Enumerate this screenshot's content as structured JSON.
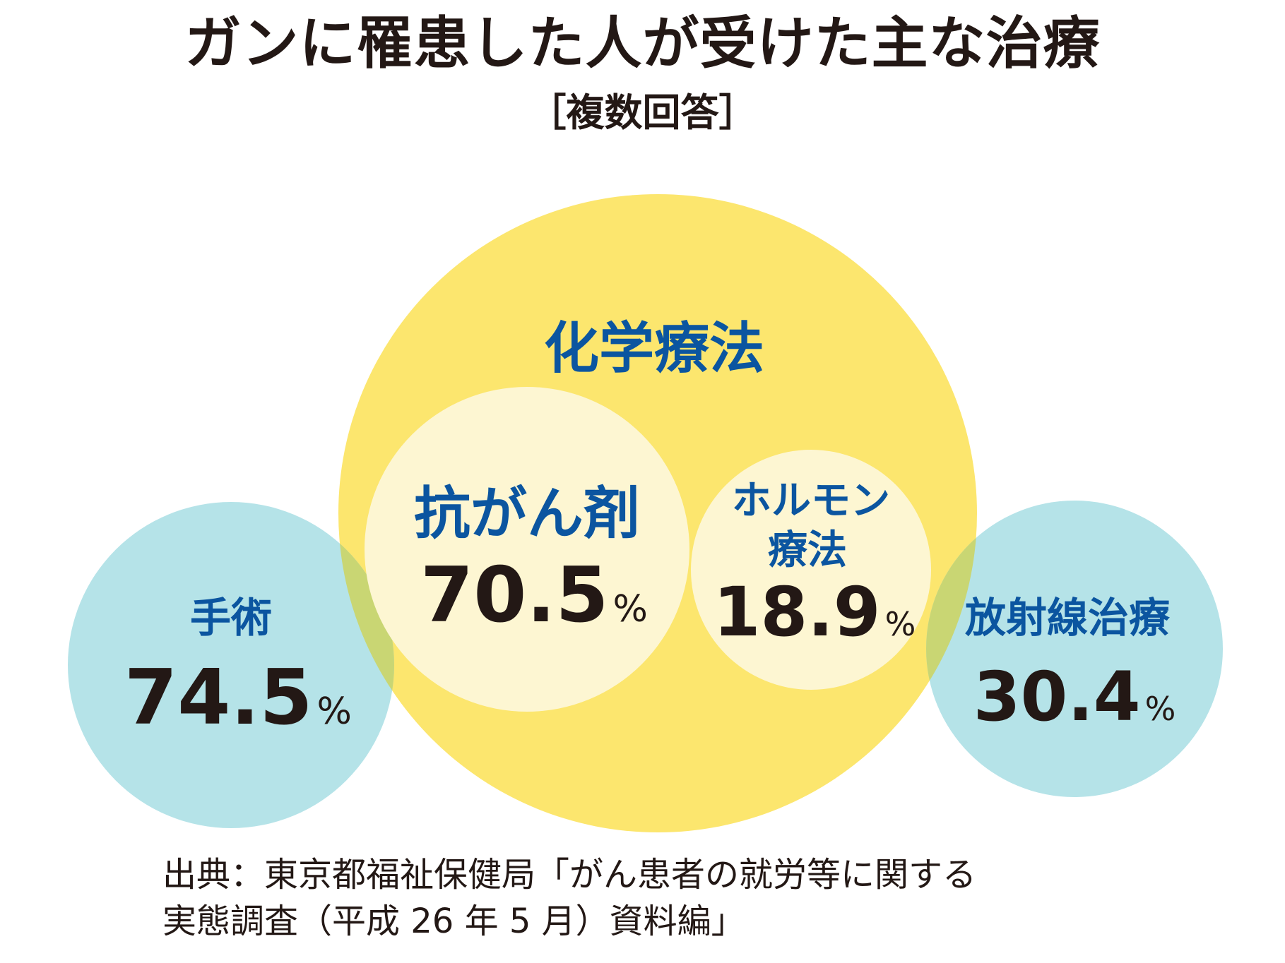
{
  "title": "ガンに罹患した人が受けた主な治療",
  "subtitle": "［複数回答］",
  "chart_data": {
    "type": "bubble",
    "unit": "%",
    "items": [
      {
        "label": "手術",
        "value": 74.5,
        "group": ""
      },
      {
        "label": "化学療法",
        "value": null,
        "group": ""
      },
      {
        "label": "抗がん剤",
        "value": 70.5,
        "group": "化学療法"
      },
      {
        "label": "ホルモン療法",
        "value": 18.9,
        "group": "化学療法"
      },
      {
        "label": "放射線治療",
        "value": 30.4,
        "group": ""
      }
    ]
  },
  "source": {
    "line1": "出典：東京都福祉保健局「がん患者の就労等に関する",
    "line2": "実態調査（平成 26 年 5 月）資料編」"
  },
  "colors": {
    "yellow": "#fce66e",
    "light_yellow": "#fdf6d2",
    "cyan": "#b5e3e8",
    "overlap": "#c9d673",
    "label_blue": "#0b55a0",
    "value_dark": "#231815"
  }
}
